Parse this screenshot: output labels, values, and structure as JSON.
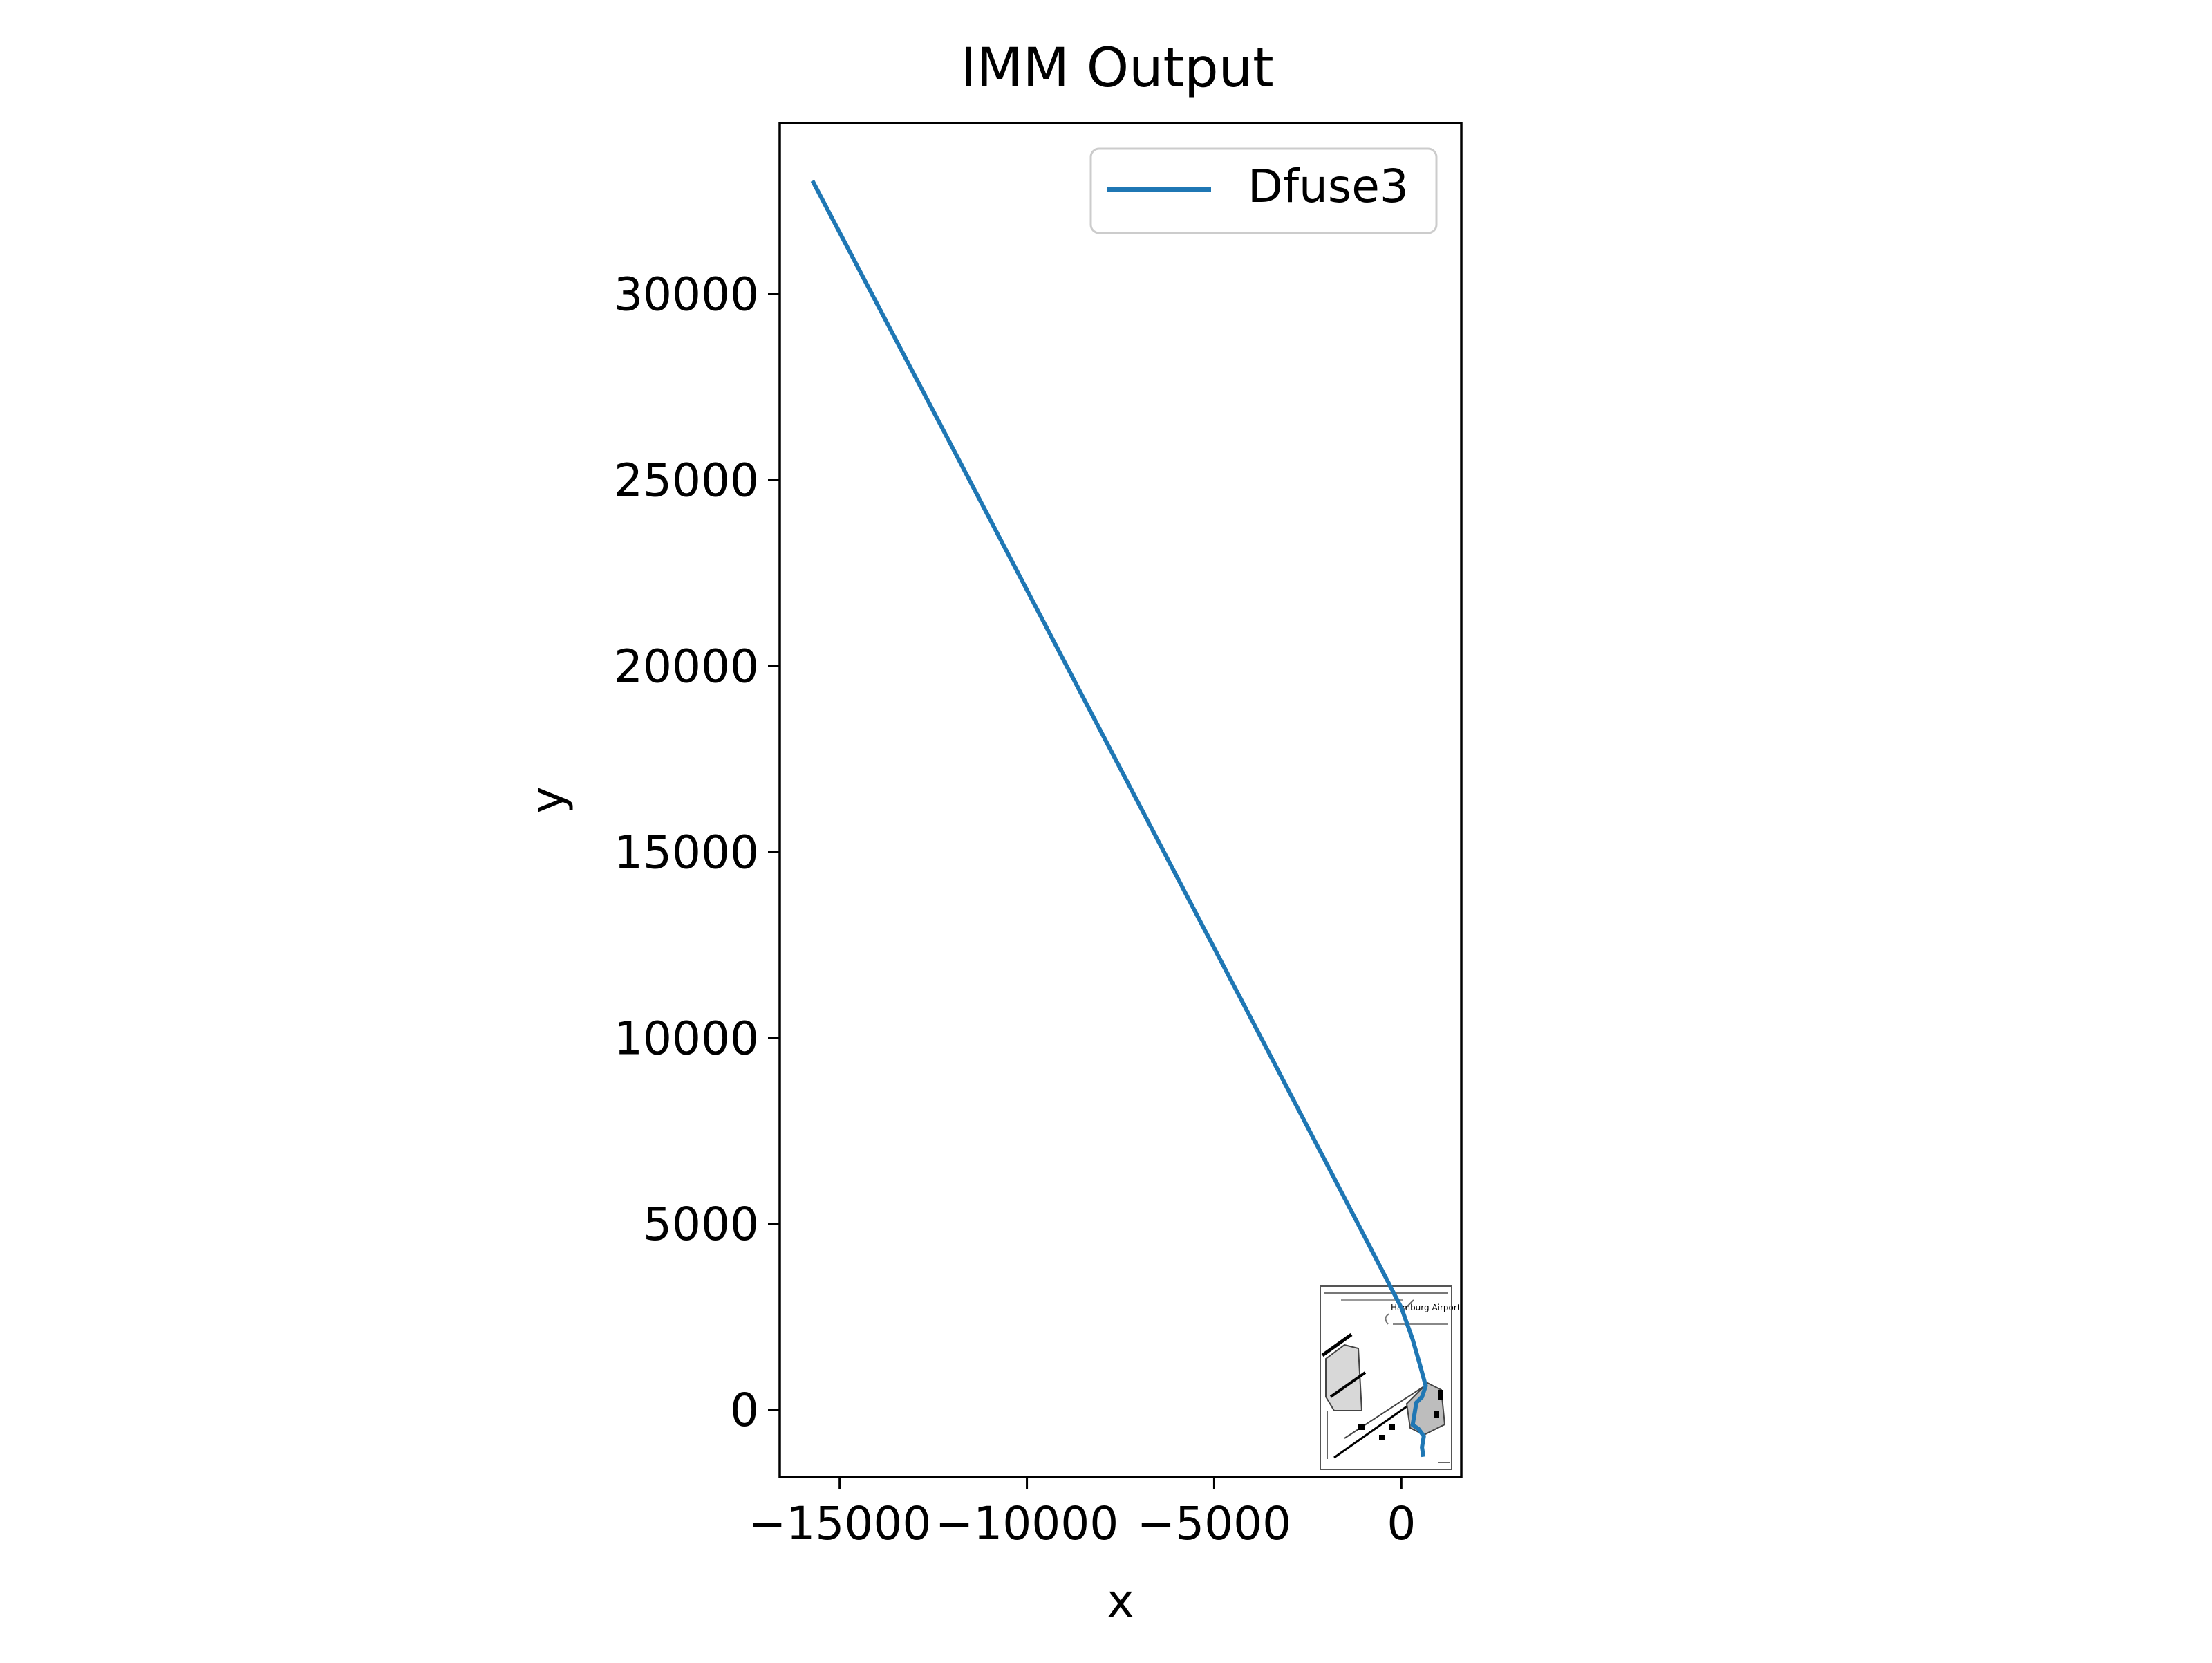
{
  "chart_data": {
    "type": "line",
    "title": "IMM Output",
    "xlabel": "x",
    "ylabel": "y",
    "xlim": [
      -16600,
      1600
    ],
    "ylim": [
      -1800,
      34600
    ],
    "xticks": [
      -15000,
      -10000,
      -5000,
      0
    ],
    "xtick_labels": [
      "−15000",
      "−10000",
      "−5000",
      "0"
    ],
    "yticks": [
      0,
      5000,
      10000,
      15000,
      20000,
      25000,
      30000
    ],
    "ytick_labels": [
      "0",
      "5000",
      "10000",
      "15000",
      "20000",
      "25000",
      "30000"
    ],
    "grid": false,
    "legend": {
      "position": "upper right",
      "entries": [
        "Dfuse3"
      ]
    },
    "series": [
      {
        "name": "Dfuse3",
        "color": "#1f77b4",
        "x": [
          -15700,
          -12000,
          -8000,
          -4000,
          -1000,
          0,
          300,
          500,
          650,
          550,
          400,
          300,
          450,
          600,
          550,
          580
        ],
        "y": [
          33000,
          25900,
          18200,
          10500,
          4700,
          2750,
          1900,
          1200,
          650,
          350,
          200,
          -400,
          -500,
          -700,
          -1000,
          -1200
        ]
      }
    ],
    "background_image": {
      "description_icon": "airport-map-icon",
      "text": "Hamburg Airport",
      "extent_x": [
        -1950,
        1550
      ],
      "extent_y": [
        -1650,
        3300
      ]
    }
  }
}
